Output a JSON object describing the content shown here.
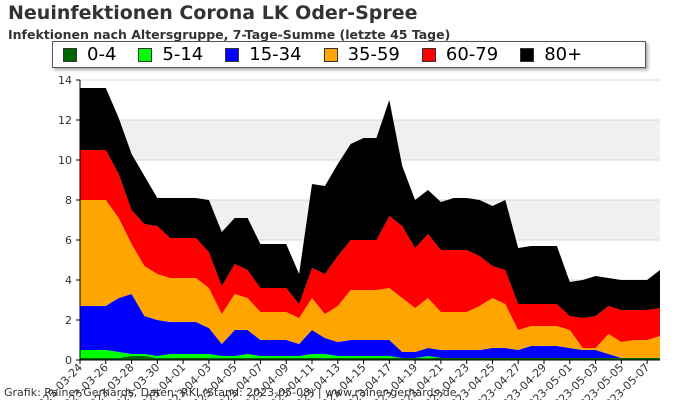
{
  "title": "Neuinfektionen Corona LK Oder-Spree",
  "subtitle": "Infektionen nach Altersgruppe, 7-Tage-Summe (letzte 45 Tage)",
  "footer": "Grafik: Rainer Gerhards, Daten: RKI (Stand: 2023-05-08) | www.rainer-gerhards.de",
  "colors": {
    "0-4": "#006400",
    "5-14": "#00ff00",
    "15-34": "#0000ff",
    "35-59": "#ffa500",
    "60-79": "#ff0000",
    "80+": "#000000",
    "band": "#f0f0f0",
    "grid": "#d9d9d9"
  },
  "chart_data": {
    "type": "area",
    "stacked": true,
    "title": "Neuinfektionen Corona LK Oder-Spree",
    "subtitle": "Infektionen nach Altersgruppe, 7-Tage-Summe (letzte 45 Tage)",
    "ylim": [
      0,
      14
    ],
    "yticks": [
      "0",
      "2",
      "4",
      "6",
      "8",
      "10",
      "12",
      "14"
    ],
    "grid": true,
    "legend": "top",
    "x_tick_labels": [
      "2023-03-24",
      "2023-03-26",
      "2023-03-28",
      "2023-03-30",
      "2023-04-01",
      "2023-04-03",
      "2023-04-05",
      "2023-04-07",
      "2023-04-09",
      "2023-04-11",
      "2023-04-13",
      "2023-04-15",
      "2023-04-17",
      "2023-04-19",
      "2023-04-21",
      "2023-04-23",
      "2023-04-25",
      "2023-04-27",
      "2023-04-29",
      "2023-05-01",
      "2023-05-03",
      "2023-05-05",
      "2023-05-07"
    ],
    "x": [
      "2023-03-24",
      "2023-03-25",
      "2023-03-26",
      "2023-03-27",
      "2023-03-28",
      "2023-03-29",
      "2023-03-30",
      "2023-03-31",
      "2023-04-01",
      "2023-04-02",
      "2023-04-03",
      "2023-04-04",
      "2023-04-05",
      "2023-04-06",
      "2023-04-07",
      "2023-04-08",
      "2023-04-09",
      "2023-04-10",
      "2023-04-11",
      "2023-04-12",
      "2023-04-13",
      "2023-04-14",
      "2023-04-15",
      "2023-04-16",
      "2023-04-17",
      "2023-04-18",
      "2023-04-19",
      "2023-04-20",
      "2023-04-21",
      "2023-04-22",
      "2023-04-23",
      "2023-04-24",
      "2023-04-25",
      "2023-04-26",
      "2023-04-27",
      "2023-04-28",
      "2023-04-29",
      "2023-04-30",
      "2023-05-01",
      "2023-05-02",
      "2023-05-03",
      "2023-05-04",
      "2023-05-05",
      "2023-05-06",
      "2023-05-07",
      "2023-05-08"
    ],
    "series": [
      {
        "name": "0-4",
        "values": [
          0.1,
          0.1,
          0.1,
          0.1,
          0.2,
          0.2,
          0.1,
          0.1,
          0.1,
          0.1,
          0.1,
          0.1,
          0.1,
          0.1,
          0.1,
          0.1,
          0.1,
          0.1,
          0.1,
          0.1,
          0.1,
          0.1,
          0.1,
          0.1,
          0.1,
          0.1,
          0.1,
          0.1,
          0.1,
          0.1,
          0.1,
          0.1,
          0.1,
          0.1,
          0.1,
          0.1,
          0.1,
          0.1,
          0.1,
          0.1,
          0.1,
          0.1,
          0.1,
          0.1,
          0.1,
          0.1
        ]
      },
      {
        "name": "5-14",
        "values": [
          0.4,
          0.4,
          0.4,
          0.3,
          0.1,
          0.1,
          0.1,
          0.2,
          0.2,
          0.2,
          0.2,
          0.1,
          0.1,
          0.2,
          0.1,
          0.1,
          0.1,
          0.1,
          0.2,
          0.2,
          0.1,
          0.1,
          0.1,
          0.1,
          0.1,
          0.0,
          0.0,
          0.1,
          0.0,
          0.0,
          0.0,
          0.0,
          0.0,
          0.0,
          0.0,
          0.0,
          0.0,
          0.0,
          0.0,
          0.0,
          0.0,
          0.0,
          0.0,
          0.0,
          0.0,
          0.0
        ]
      },
      {
        "name": "15-34",
        "values": [
          2.2,
          2.2,
          2.2,
          2.7,
          3.0,
          1.9,
          1.8,
          1.6,
          1.6,
          1.6,
          1.3,
          0.6,
          1.3,
          1.2,
          0.8,
          0.8,
          0.8,
          0.6,
          1.2,
          0.8,
          0.7,
          0.8,
          0.8,
          0.8,
          0.8,
          0.3,
          0.3,
          0.4,
          0.4,
          0.4,
          0.4,
          0.4,
          0.5,
          0.5,
          0.4,
          0.6,
          0.6,
          0.6,
          0.5,
          0.4,
          0.4,
          0.2,
          0.0,
          0.0,
          0.0,
          0.0
        ]
      },
      {
        "name": "35-59",
        "values": [
          5.3,
          5.3,
          5.3,
          4.0,
          2.5,
          2.5,
          2.3,
          2.2,
          2.2,
          2.2,
          2.0,
          1.5,
          1.8,
          1.6,
          1.4,
          1.4,
          1.4,
          1.3,
          1.6,
          1.2,
          1.8,
          2.5,
          2.5,
          2.5,
          2.6,
          2.7,
          2.2,
          2.5,
          1.9,
          1.9,
          1.9,
          2.2,
          2.5,
          2.2,
          1.0,
          1.0,
          1.0,
          1.0,
          0.9,
          0.1,
          0.1,
          1.0,
          0.8,
          0.9,
          0.9,
          1.1
        ]
      },
      {
        "name": "60-79",
        "values": [
          2.5,
          2.5,
          2.5,
          2.2,
          1.7,
          2.1,
          2.4,
          2.0,
          2.0,
          2.0,
          1.8,
          1.4,
          1.5,
          1.4,
          1.2,
          1.2,
          1.2,
          0.7,
          1.5,
          2.0,
          2.5,
          2.5,
          2.5,
          2.5,
          3.6,
          3.6,
          3.0,
          3.2,
          3.1,
          3.1,
          3.1,
          2.5,
          1.6,
          1.7,
          1.3,
          1.1,
          1.1,
          1.1,
          0.7,
          1.5,
          1.6,
          1.4,
          1.6,
          1.5,
          1.5,
          1.4
        ]
      },
      {
        "name": "80+",
        "values": [
          3.1,
          3.1,
          3.1,
          2.8,
          2.8,
          2.4,
          1.4,
          2.0,
          2.0,
          2.0,
          2.6,
          2.7,
          2.3,
          2.6,
          2.2,
          2.2,
          2.2,
          1.5,
          4.2,
          4.4,
          4.6,
          4.8,
          5.1,
          5.1,
          5.8,
          3.0,
          2.4,
          2.2,
          2.4,
          2.6,
          2.6,
          2.8,
          3.0,
          3.5,
          2.8,
          2.9,
          2.9,
          2.9,
          1.7,
          1.9,
          2.0,
          1.4,
          1.5,
          1.5,
          1.5,
          1.9
        ]
      }
    ]
  }
}
